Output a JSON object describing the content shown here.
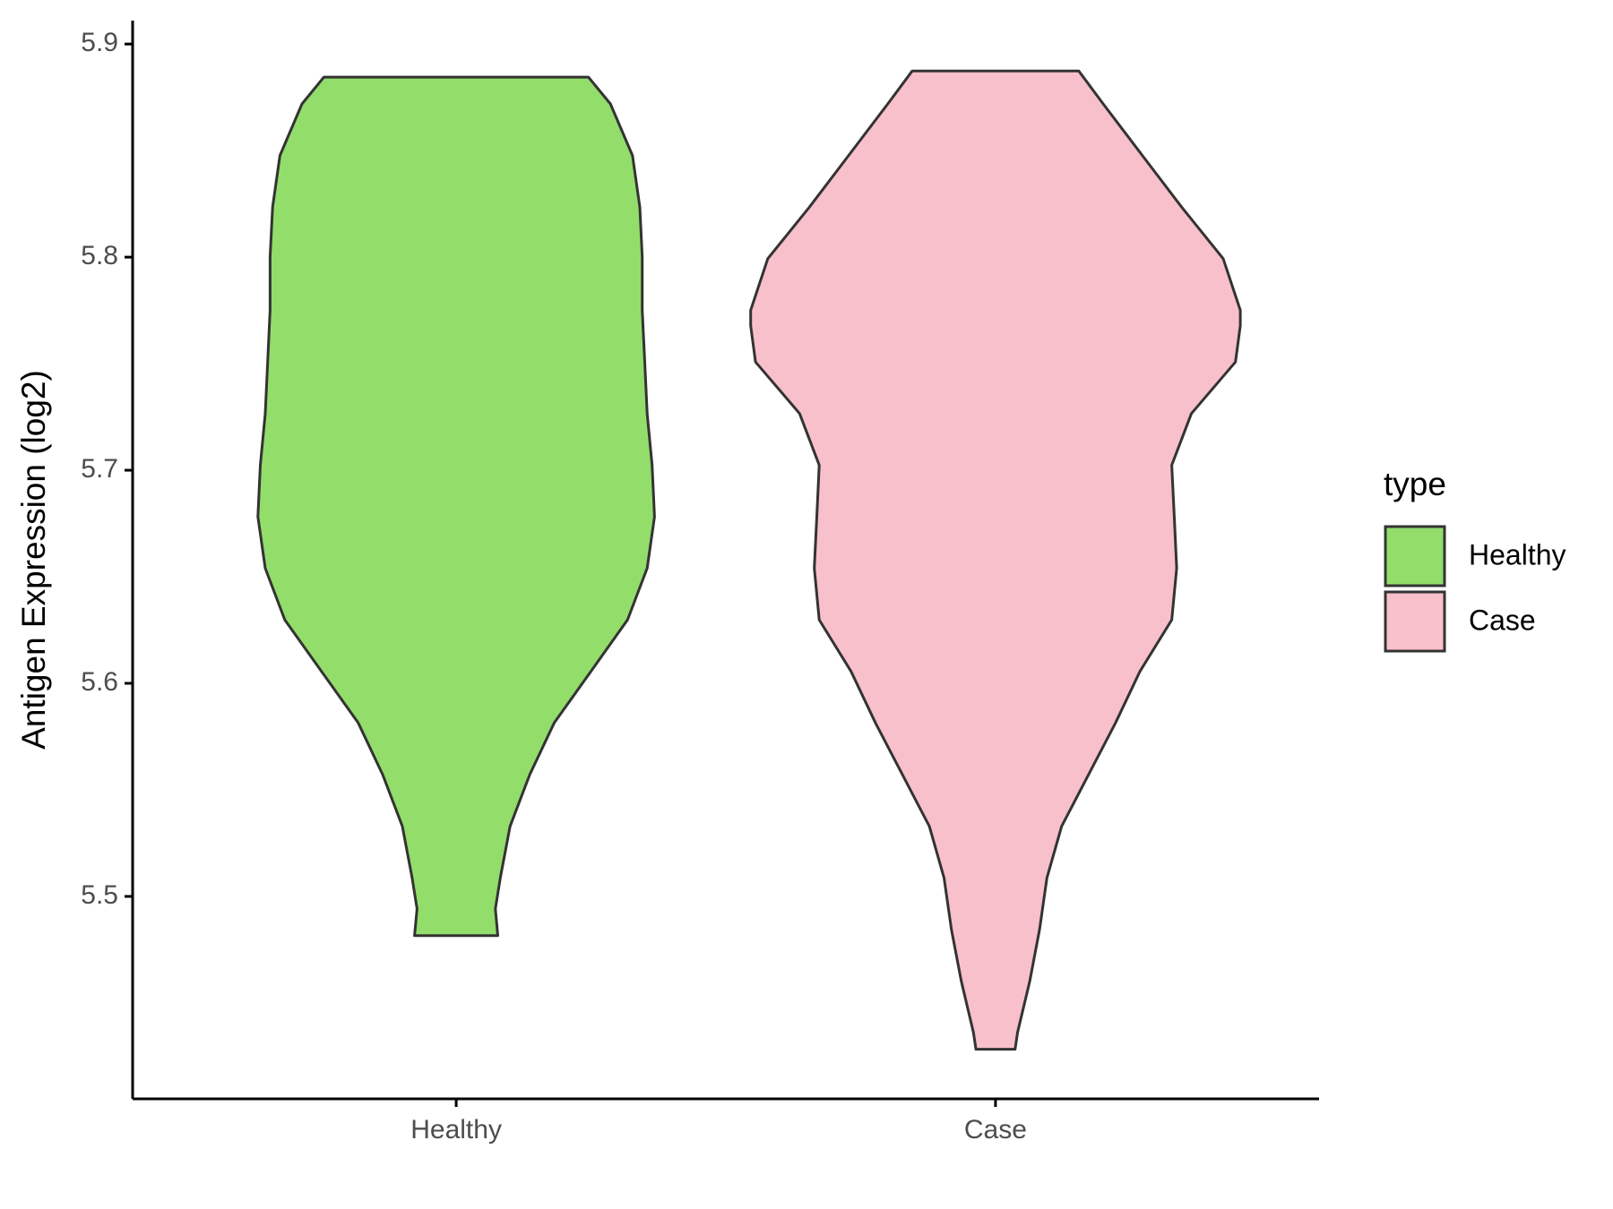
{
  "chart_data": {
    "type": "violin",
    "y_label": "Antigen Expression (log2)",
    "categories": [
      "Healthy",
      "Case"
    ],
    "legend_title": "type",
    "ylim": [
      5.405,
      5.911
    ],
    "yticks": [
      5.5,
      5.6,
      5.7,
      5.8,
      5.9
    ],
    "series": [
      {
        "name": "Healthy",
        "color": "#93dd6b",
        "y": [
          5.8845,
          5.8719,
          5.8477,
          5.8235,
          5.8,
          5.7751,
          5.7508,
          5.7266,
          5.7024,
          5.6782,
          5.654,
          5.6298,
          5.6056,
          5.5814,
          5.5571,
          5.5329,
          5.5087,
          5.4942,
          5.4816
        ],
        "width": [
          0.54,
          0.63,
          0.72,
          0.75,
          0.76,
          0.76,
          0.77,
          0.78,
          0.8,
          0.81,
          0.78,
          0.7,
          0.55,
          0.4,
          0.3,
          0.22,
          0.18,
          0.16,
          0.17
        ]
      },
      {
        "name": "Case",
        "color": "#f8c0cb",
        "y": [
          5.8874,
          5.8719,
          5.8477,
          5.8235,
          5.7993,
          5.7751,
          5.7678,
          5.7508,
          5.7266,
          5.7024,
          5.6782,
          5.654,
          5.6298,
          5.6056,
          5.5814,
          5.5571,
          5.5329,
          5.5087,
          5.4845,
          5.4603,
          5.4361,
          5.4283
        ],
        "width": [
          0.34,
          0.44,
          0.6,
          0.76,
          0.93,
          1.0,
          1.0,
          0.98,
          0.8,
          0.72,
          0.73,
          0.74,
          0.72,
          0.59,
          0.49,
          0.38,
          0.27,
          0.21,
          0.18,
          0.14,
          0.09,
          0.08
        ]
      }
    ]
  }
}
